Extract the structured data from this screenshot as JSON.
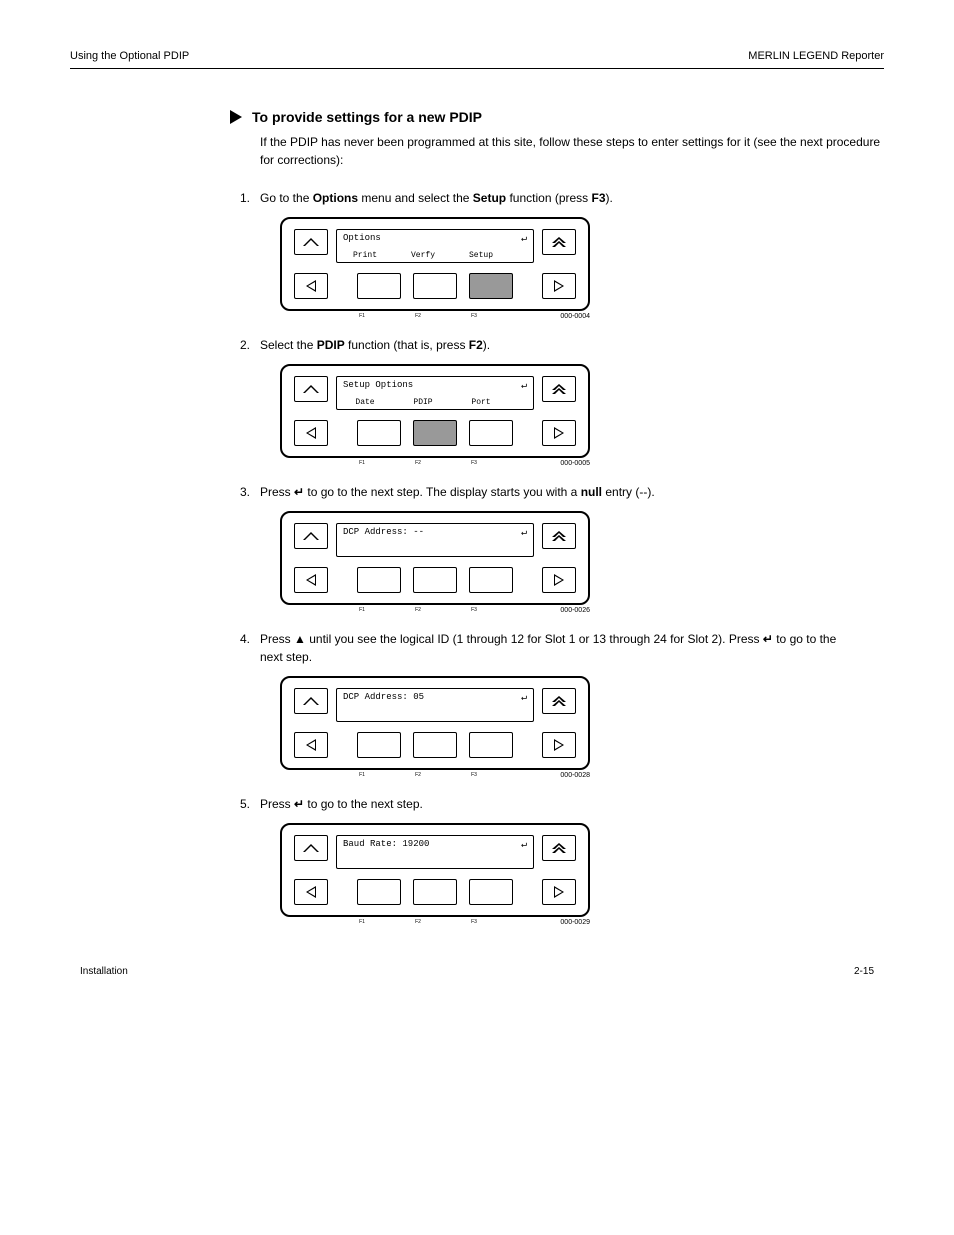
{
  "header": {
    "left": "Using the Optional PDIP",
    "right": "MERLIN LEGEND Reporter"
  },
  "section": {
    "title": "To provide settings for a new PDIP",
    "intro": "If the PDIP has never been programmed at this site, follow these steps to enter settings for it (see the next procedure for corrections):"
  },
  "steps": [
    {
      "num": "1.",
      "text_parts": [
        "Go to the ",
        "Options",
        " menu and select the ",
        "Setup",
        " function (press ",
        "F3",
        ")."
      ],
      "lcd1_left": "Options",
      "lcd1_right": "↵",
      "softs": [
        "Print",
        "Verfy",
        "Setup"
      ],
      "shaded": 2,
      "caption": "000-0004"
    },
    {
      "num": "2.",
      "text_parts": [
        "Select the ",
        "PDIP",
        " function (that is, press ",
        "F2",
        ")."
      ],
      "lcd1_left": "Setup Options",
      "lcd1_right": "↵",
      "softs": [
        "Date",
        "PDIP",
        "Port"
      ],
      "shaded": 1,
      "caption": "000-0005"
    },
    {
      "num": "3.",
      "text_parts": [
        "Press ",
        "↵",
        " to go to the next step. The display starts you with a ",
        "null",
        " entry (--)."
      ],
      "lcd1_left": "DCP Address: --",
      "lcd1_right": "↵",
      "softs": [
        "",
        "",
        ""
      ],
      "shaded": -1,
      "caption": "000-0026"
    },
    {
      "num": "4.",
      "text_parts": [
        "Press ",
        "▲",
        " until you see the logical ID (1 through 12 for Slot 1 or 13 through 24 for Slot 2). Press ",
        "↵",
        " to go to the next step."
      ],
      "lcd1_left": "DCP Address: 05",
      "lcd1_right": "↵",
      "softs": [
        "",
        "",
        ""
      ],
      "shaded": -1,
      "caption": "000-0028"
    },
    {
      "num": "5.",
      "text_parts": [
        "Press ",
        "↵",
        " to go to the next step."
      ],
      "lcd1_left": "Baud Rate: 19200",
      "lcd1_right": "↵",
      "softs": [
        "",
        "",
        ""
      ],
      "shaded": -1,
      "caption": "000-0029"
    }
  ],
  "footer": {
    "left": "Installation",
    "right": "2-15"
  }
}
